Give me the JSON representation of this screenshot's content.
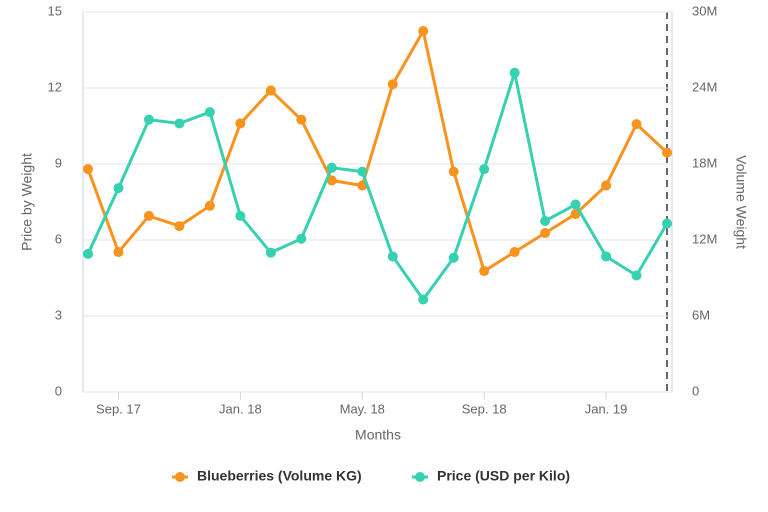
{
  "chart_data": {
    "type": "line",
    "x_label": "Months",
    "y_label": "Price by Weight",
    "y2_label": "Volume Weight",
    "categories": [
      null,
      "Sep. 17",
      null,
      null,
      null,
      "Jan. 18",
      null,
      null,
      null,
      "May. 18",
      null,
      null,
      null,
      "Sep. 18",
      null,
      null,
      null,
      "Jan. 19",
      null,
      null
    ],
    "series": [
      {
        "name": "Blueberries (Volume KG)",
        "color": "#f7931e",
        "axis": "y2",
        "values": [
          17600000,
          11050000,
          13900000,
          13100000,
          14700000,
          21200000,
          23800000,
          21500000,
          16700000,
          16300000,
          24300000,
          28500000,
          17400000,
          9550000,
          11050000,
          12550000,
          14050000,
          16300000,
          21150000,
          18900000
        ]
      },
      {
        "name": "Price (USD per Kilo)",
        "color": "#36d1b0",
        "values": [
          5.45,
          8.05,
          10.75,
          10.6,
          11.05,
          6.95,
          5.5,
          6.05,
          8.85,
          8.7,
          5.35,
          3.65,
          5.3,
          8.8,
          12.6,
          6.75,
          7.4,
          5.35,
          4.6,
          6.65
        ]
      }
    ],
    "ylim": [
      0,
      15
    ],
    "yticks": [
      0,
      3,
      6,
      9,
      12,
      15
    ],
    "y2lim": [
      0,
      30000000
    ],
    "y2ticks": [
      0,
      {
        "value": 6000000,
        "label": "6M"
      },
      {
        "value": 12000000,
        "label": "12M"
      },
      {
        "value": 18000000,
        "label": "18M"
      },
      {
        "value": 24000000,
        "label": "24M"
      },
      {
        "value": 30000000,
        "label": "30M"
      }
    ],
    "grid": true
  }
}
